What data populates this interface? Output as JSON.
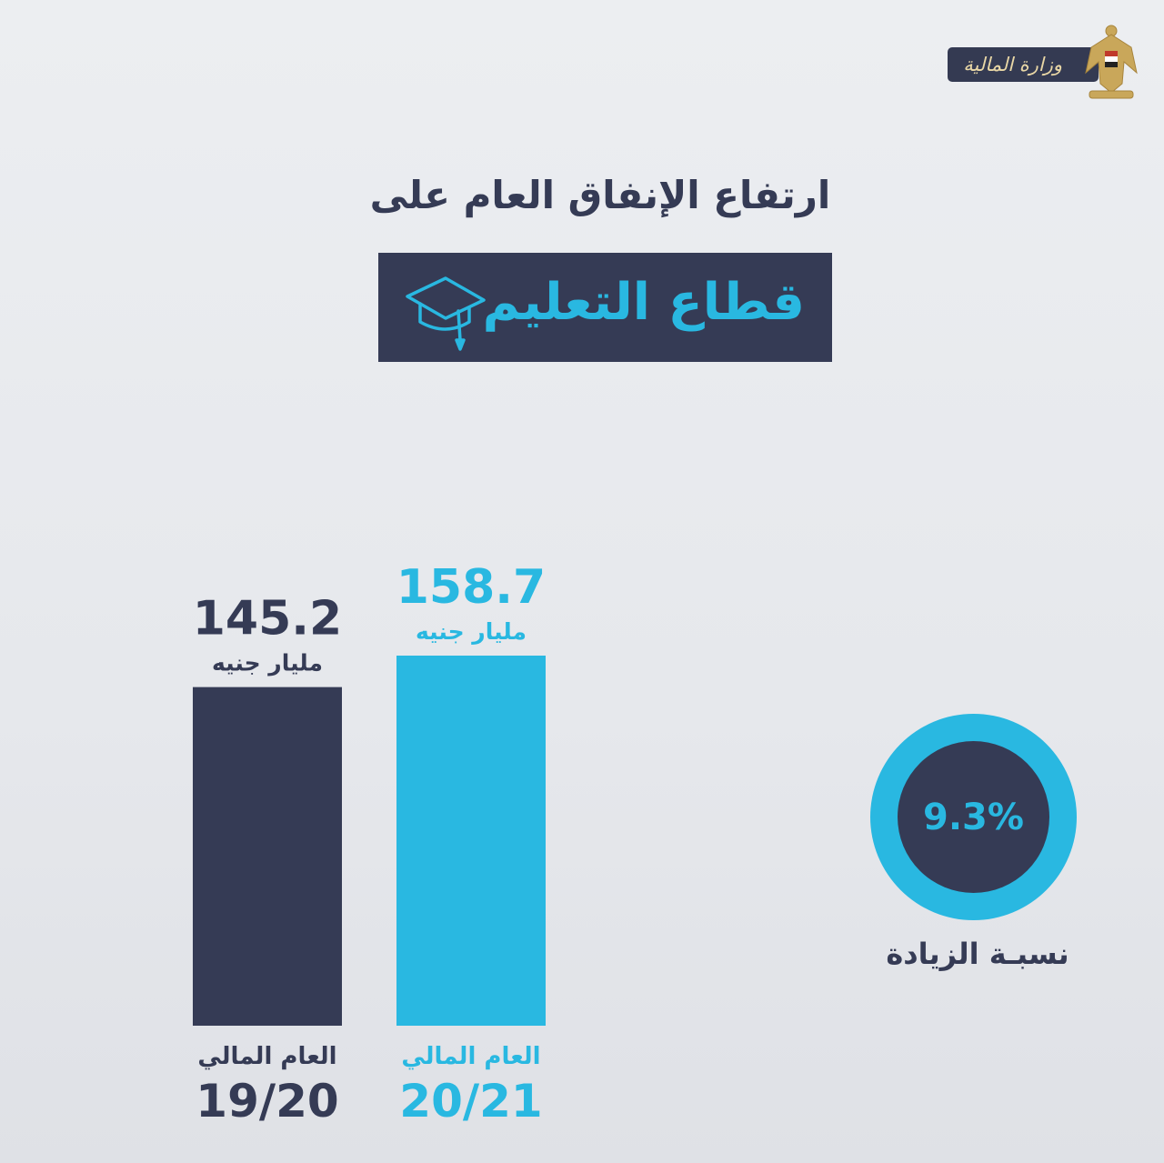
{
  "colors": {
    "dark": "#353b55",
    "accent": "#29b8e1",
    "background": "#e8eaee",
    "gold": "#e9d7a6"
  },
  "header": {
    "logo_text": "وزارة المالية",
    "emblem_icon": "eagle-emblem-icon"
  },
  "headline": "ارتفاع الإنفاق العام على",
  "title": {
    "text": "قطاع التعليم",
    "icon": "graduation-cap-icon"
  },
  "increase": {
    "value": "9.3%",
    "label": "نسبـة الزيادة"
  },
  "chart_data": {
    "type": "bar",
    "categories": [
      "19/20",
      "20/21"
    ],
    "values": [
      145.2,
      158.7
    ],
    "value_labels": [
      "145.2",
      "158.7"
    ],
    "unit_label": "مليار جنيه",
    "category_caption": "العام المالي",
    "colors": [
      "#353b55",
      "#29b8e1"
    ],
    "title": "",
    "xlabel": "",
    "ylabel": "",
    "grid": false,
    "legend": "none"
  }
}
